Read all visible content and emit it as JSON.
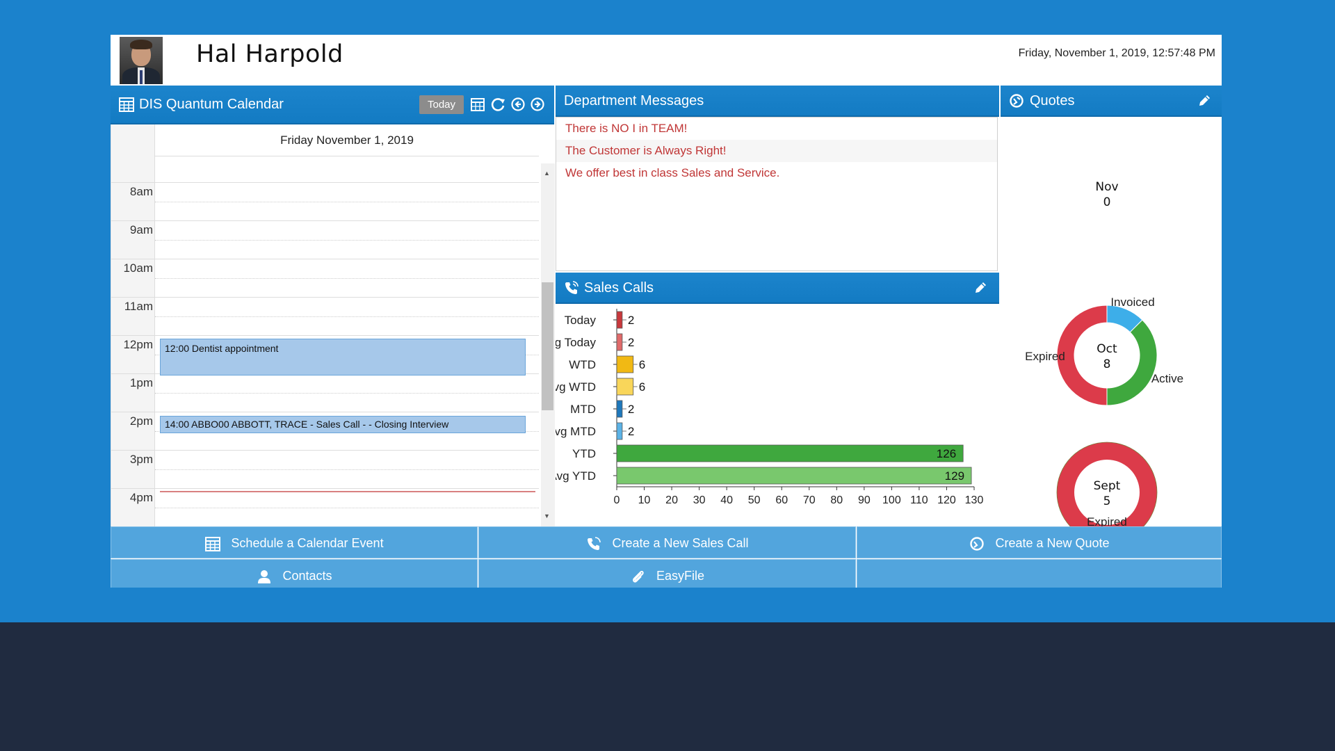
{
  "header": {
    "user_name": "Hal Harpold",
    "datetime": "Friday, November 1, 2019, 12:57:48 PM"
  },
  "calendar": {
    "title": "DIS Quantum Calendar",
    "today_label": "Today",
    "date_heading": "Friday November 1, 2019",
    "hours": [
      "8am",
      "9am",
      "10am",
      "11am",
      "12pm",
      "1pm",
      "2pm",
      "3pm",
      "4pm"
    ],
    "events": [
      {
        "text": "12:00 Dentist appointment"
      },
      {
        "text": "14:00 ABBO00 ABBOTT, TRACE - Sales Call - - Closing Interview"
      }
    ]
  },
  "messages": {
    "title": "Department Messages",
    "items": [
      "There is NO I in TEAM!",
      "The Customer is Always Right!",
      "We offer best in class Sales and Service."
    ]
  },
  "sales_calls": {
    "title": "Sales Calls"
  },
  "chart_data": [
    {
      "type": "bar",
      "orientation": "horizontal",
      "categories": [
        "Today",
        "Avg Today",
        "WTD",
        "Avg WTD",
        "MTD",
        "Avg MTD",
        "YTD",
        "Avg YTD"
      ],
      "values": [
        2,
        2,
        6,
        6,
        2,
        2,
        126,
        129
      ],
      "colors": [
        "#c8383c",
        "#e06a6a",
        "#f1b914",
        "#f9d65a",
        "#1e78bc",
        "#5bb2e6",
        "#3fa83e",
        "#79c86d"
      ],
      "xlim": [
        0,
        130
      ],
      "xticks": [
        "0",
        "10",
        "20",
        "30",
        "40",
        "50",
        "60",
        "70",
        "80",
        "90",
        "100",
        "110",
        "120",
        "130"
      ],
      "grid": false
    },
    {
      "type": "pie",
      "center_label": "Nov",
      "center_value": "0",
      "slices": []
    },
    {
      "type": "pie",
      "center_label": "Oct",
      "center_value": "8",
      "slices": [
        {
          "label": "Invoiced",
          "value": 1,
          "color": "#3daee9"
        },
        {
          "label": "Active",
          "value": 3,
          "color": "#3fa83e"
        },
        {
          "label": "Expired",
          "value": 4,
          "color": "#dc3b4a"
        }
      ]
    },
    {
      "type": "pie",
      "center_label": "Sept",
      "center_value": "5",
      "slices": [
        {
          "label": "Expired",
          "value": 5,
          "color": "#dc3b4a"
        }
      ]
    }
  ],
  "quotes": {
    "title": "Quotes"
  },
  "buttons": {
    "schedule": "Schedule a Calendar Event",
    "new_sales_call": "Create a New Sales Call",
    "new_quote": "Create a New Quote",
    "contacts": "Contacts",
    "easyfile": "EasyFile"
  },
  "icons": {
    "calendar": "calendar-icon",
    "refresh": "refresh-icon",
    "prev": "arrow-left-circle-icon",
    "next": "arrow-right-circle-icon",
    "phone": "phone-icon",
    "pencil": "pencil-icon",
    "quote": "quote-icon",
    "user": "user-icon",
    "paperclip": "paperclip-icon"
  }
}
